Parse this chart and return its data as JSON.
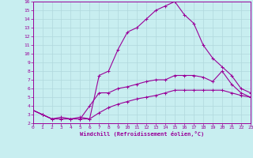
{
  "xlabel": "Windchill (Refroidissement éolien,°C)",
  "background_color": "#c8eef0",
  "grid_color": "#b0d8dc",
  "line_color": "#990099",
  "x_ticks": [
    0,
    1,
    2,
    3,
    4,
    5,
    6,
    7,
    8,
    9,
    10,
    11,
    12,
    13,
    14,
    15,
    16,
    17,
    18,
    19,
    20,
    21,
    22,
    23
  ],
  "y_ticks": [
    2,
    3,
    4,
    5,
    6,
    7,
    8,
    9,
    10,
    11,
    12,
    13,
    14,
    15,
    16
  ],
  "ylim": [
    2,
    16
  ],
  "xlim": [
    0,
    23
  ],
  "line1_x": [
    0,
    1,
    2,
    3,
    4,
    5,
    6,
    7,
    8,
    9,
    10,
    11,
    12,
    13,
    14,
    15,
    16,
    17,
    18,
    19,
    20,
    21,
    22,
    23
  ],
  "line1_y": [
    3.5,
    3.0,
    2.5,
    2.7,
    2.5,
    2.7,
    2.5,
    7.5,
    8.0,
    10.5,
    12.5,
    13.0,
    14.0,
    15.0,
    15.5,
    16.0,
    14.5,
    13.5,
    11.0,
    9.5,
    8.5,
    7.5,
    6.0,
    5.5
  ],
  "line2_x": [
    0,
    1,
    2,
    3,
    4,
    5,
    6,
    7,
    8,
    9,
    10,
    11,
    12,
    13,
    14,
    15,
    16,
    17,
    18,
    19,
    20,
    21,
    22,
    23
  ],
  "line2_y": [
    3.5,
    3.0,
    2.5,
    2.5,
    2.5,
    2.5,
    4.0,
    5.5,
    5.5,
    6.0,
    6.2,
    6.5,
    6.8,
    7.0,
    7.0,
    7.5,
    7.5,
    7.5,
    7.3,
    6.8,
    8.0,
    6.5,
    5.5,
    5.0
  ],
  "line3_x": [
    0,
    1,
    2,
    3,
    4,
    5,
    6,
    7,
    8,
    9,
    10,
    11,
    12,
    13,
    14,
    15,
    16,
    17,
    18,
    19,
    20,
    21,
    22,
    23
  ],
  "line3_y": [
    3.5,
    3.0,
    2.5,
    2.5,
    2.5,
    2.5,
    2.5,
    3.2,
    3.8,
    4.2,
    4.5,
    4.8,
    5.0,
    5.2,
    5.5,
    5.8,
    5.8,
    5.8,
    5.8,
    5.8,
    5.8,
    5.5,
    5.2,
    5.0
  ]
}
